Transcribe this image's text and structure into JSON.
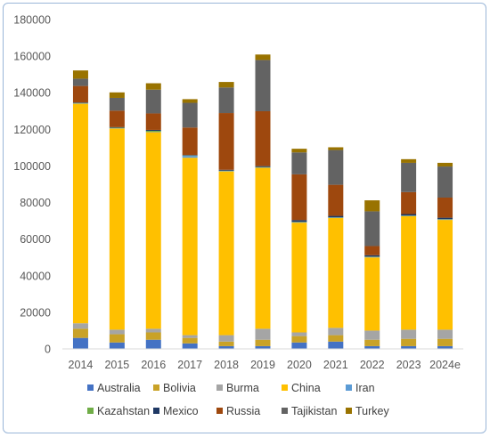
{
  "chart_data": {
    "type": "bar",
    "stacked": true,
    "title": "",
    "xlabel": "",
    "ylabel": "",
    "ylim": [
      0,
      180000
    ],
    "yticks": [
      0,
      20000,
      40000,
      60000,
      80000,
      100000,
      120000,
      140000,
      160000,
      180000
    ],
    "grid": false,
    "legend_position": "bottom",
    "categories": [
      "2014",
      "2015",
      "2016",
      "2017",
      "2018",
      "2019",
      "2020",
      "2021",
      "2022",
      "2023",
      "2024e"
    ],
    "series": [
      {
        "name": "Australia",
        "color": "#4472c4",
        "values": [
          6000,
          3500,
          5000,
          3000,
          1500,
          1500,
          3500,
          4000,
          1500,
          1500,
          1500
        ]
      },
      {
        "name": "Bolivia",
        "color": "#c9a227",
        "values": [
          5000,
          4500,
          4000,
          3000,
          2500,
          3500,
          3500,
          3500,
          3500,
          4000,
          4000
        ]
      },
      {
        "name": "Burma",
        "color": "#a5a5a5",
        "values": [
          3000,
          2500,
          2000,
          1500,
          3500,
          6000,
          2000,
          4000,
          5000,
          5000,
          5000
        ]
      },
      {
        "name": "China",
        "color": "#ffc000",
        "values": [
          120000,
          110000,
          107500,
          97000,
          89500,
          88000,
          60000,
          60000,
          40000,
          62000,
          60000
        ]
      },
      {
        "name": "Iran",
        "color": "#5b9bd5",
        "values": [
          200,
          200,
          200,
          1000,
          200,
          200,
          200,
          200,
          200,
          200,
          200
        ]
      },
      {
        "name": "Kazahstan",
        "color": "#70ad47",
        "values": [
          200,
          200,
          500,
          200,
          200,
          200,
          200,
          200,
          200,
          200,
          200
        ]
      },
      {
        "name": "Mexico",
        "color": "#1f3864",
        "values": [
          300,
          300,
          500,
          300,
          500,
          500,
          1000,
          800,
          800,
          800,
          800
        ]
      },
      {
        "name": "Russia",
        "color": "#9e480e",
        "values": [
          9000,
          9000,
          9000,
          15000,
          31000,
          30000,
          25000,
          17000,
          5000,
          12000,
          11000
        ]
      },
      {
        "name": "Tajikistan",
        "color": "#636363",
        "values": [
          4000,
          7000,
          13000,
          13500,
          14000,
          28000,
          12000,
          19000,
          19000,
          16000,
          17000
        ]
      },
      {
        "name": "Turkey",
        "color": "#997300",
        "values": [
          4500,
          3000,
          3500,
          2000,
          3000,
          3000,
          2000,
          1500,
          6000,
          2000,
          2000
        ]
      }
    ]
  }
}
